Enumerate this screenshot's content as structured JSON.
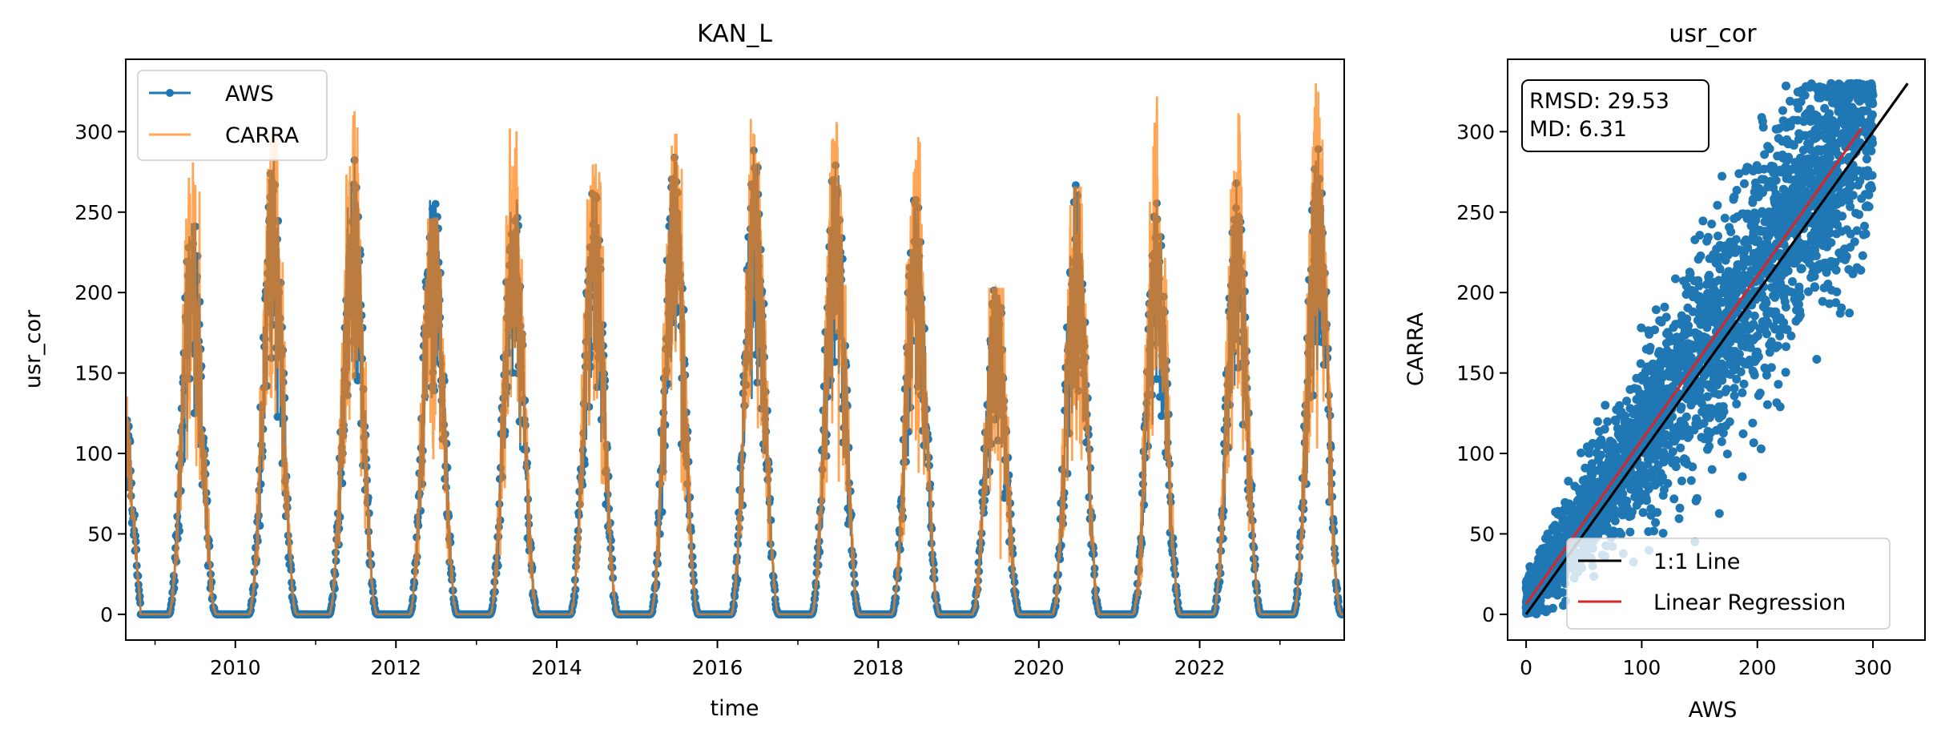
{
  "chart_data": [
    {
      "type": "line",
      "title": "KAN_L",
      "xlabel": "time",
      "ylabel": "usr_cor",
      "xlim": [
        "2008-08-21",
        "2023-10-20"
      ],
      "ylim": [
        -16,
        345
      ],
      "x_tick_labels": [
        "2010",
        "2012",
        "2014",
        "2016",
        "2018",
        "2020",
        "2022"
      ],
      "y_tick_labels": [
        "0",
        "50",
        "100",
        "150",
        "200",
        "250",
        "300"
      ],
      "legend_position": "upper-left",
      "series": [
        {
          "name": "AWS",
          "color": "#1f77b4",
          "marker": "circle",
          "seasonal_cycle": {
            "peak_day_of_year": 170,
            "season_half_width_days": 110,
            "zero_between_seasons": true
          },
          "annual_peaks": [
            {
              "year": 2009,
              "value": 254
            },
            {
              "year": 2010,
              "value": 286
            },
            {
              "year": 2011,
              "value": 289
            },
            {
              "year": 2012,
              "value": 271
            },
            {
              "year": 2013,
              "value": 272
            },
            {
              "year": 2014,
              "value": 267
            },
            {
              "year": 2015,
              "value": 290
            },
            {
              "year": 2016,
              "value": 290
            },
            {
              "year": 2017,
              "value": 287
            },
            {
              "year": 2018,
              "value": 264
            },
            {
              "year": 2019,
              "value": 217
            },
            {
              "year": 2020,
              "value": 274
            },
            {
              "year": 2021,
              "value": 260
            },
            {
              "year": 2022,
              "value": 270
            },
            {
              "year": 2023,
              "value": 298
            }
          ]
        },
        {
          "name": "CARRA",
          "color": "#ff7f0e",
          "alpha": 0.7,
          "annual_peaks": [
            {
              "year": 2009,
              "value": 281
            },
            {
              "year": 2010,
              "value": 299
            },
            {
              "year": 2011,
              "value": 314
            },
            {
              "year": 2012,
              "value": 246
            },
            {
              "year": 2013,
              "value": 302
            },
            {
              "year": 2014,
              "value": 280
            },
            {
              "year": 2015,
              "value": 298
            },
            {
              "year": 2016,
              "value": 308
            },
            {
              "year": 2017,
              "value": 306
            },
            {
              "year": 2018,
              "value": 298
            },
            {
              "year": 2019,
              "value": 203
            },
            {
              "year": 2020,
              "value": 266
            },
            {
              "year": 2021,
              "value": 325
            },
            {
              "year": 2022,
              "value": 322
            },
            {
              "year": 2023,
              "value": 330
            }
          ]
        }
      ]
    },
    {
      "type": "scatter",
      "title": "usr_cor",
      "xlabel": "AWS",
      "ylabel": "CARRA",
      "xlim": [
        -16,
        345
      ],
      "ylim": [
        -16,
        345
      ],
      "x_tick_labels": [
        "0",
        "100",
        "200",
        "300"
      ],
      "y_tick_labels": [
        "0",
        "50",
        "100",
        "150",
        "200",
        "250",
        "300"
      ],
      "stats_box": {
        "rmsd": "RMSD: 29.53",
        "md": "MD: 6.31"
      },
      "legend_position": "lower-right",
      "scatter_color": "#1f77b4",
      "point_cloud": {
        "x_range": [
          0,
          300
        ],
        "y_range": [
          0,
          330
        ],
        "fit_slope": 1.04,
        "fit_intercept": 6.3,
        "residual_spread": 29.5
      },
      "lines": [
        {
          "name": "1:1 Line",
          "color": "#000000",
          "x": [
            0,
            330
          ],
          "y": [
            0,
            330
          ]
        },
        {
          "name": "Linear Regression",
          "color": "#d62728",
          "x": [
            0,
            290
          ],
          "y": [
            6.3,
            302
          ]
        }
      ]
    }
  ]
}
